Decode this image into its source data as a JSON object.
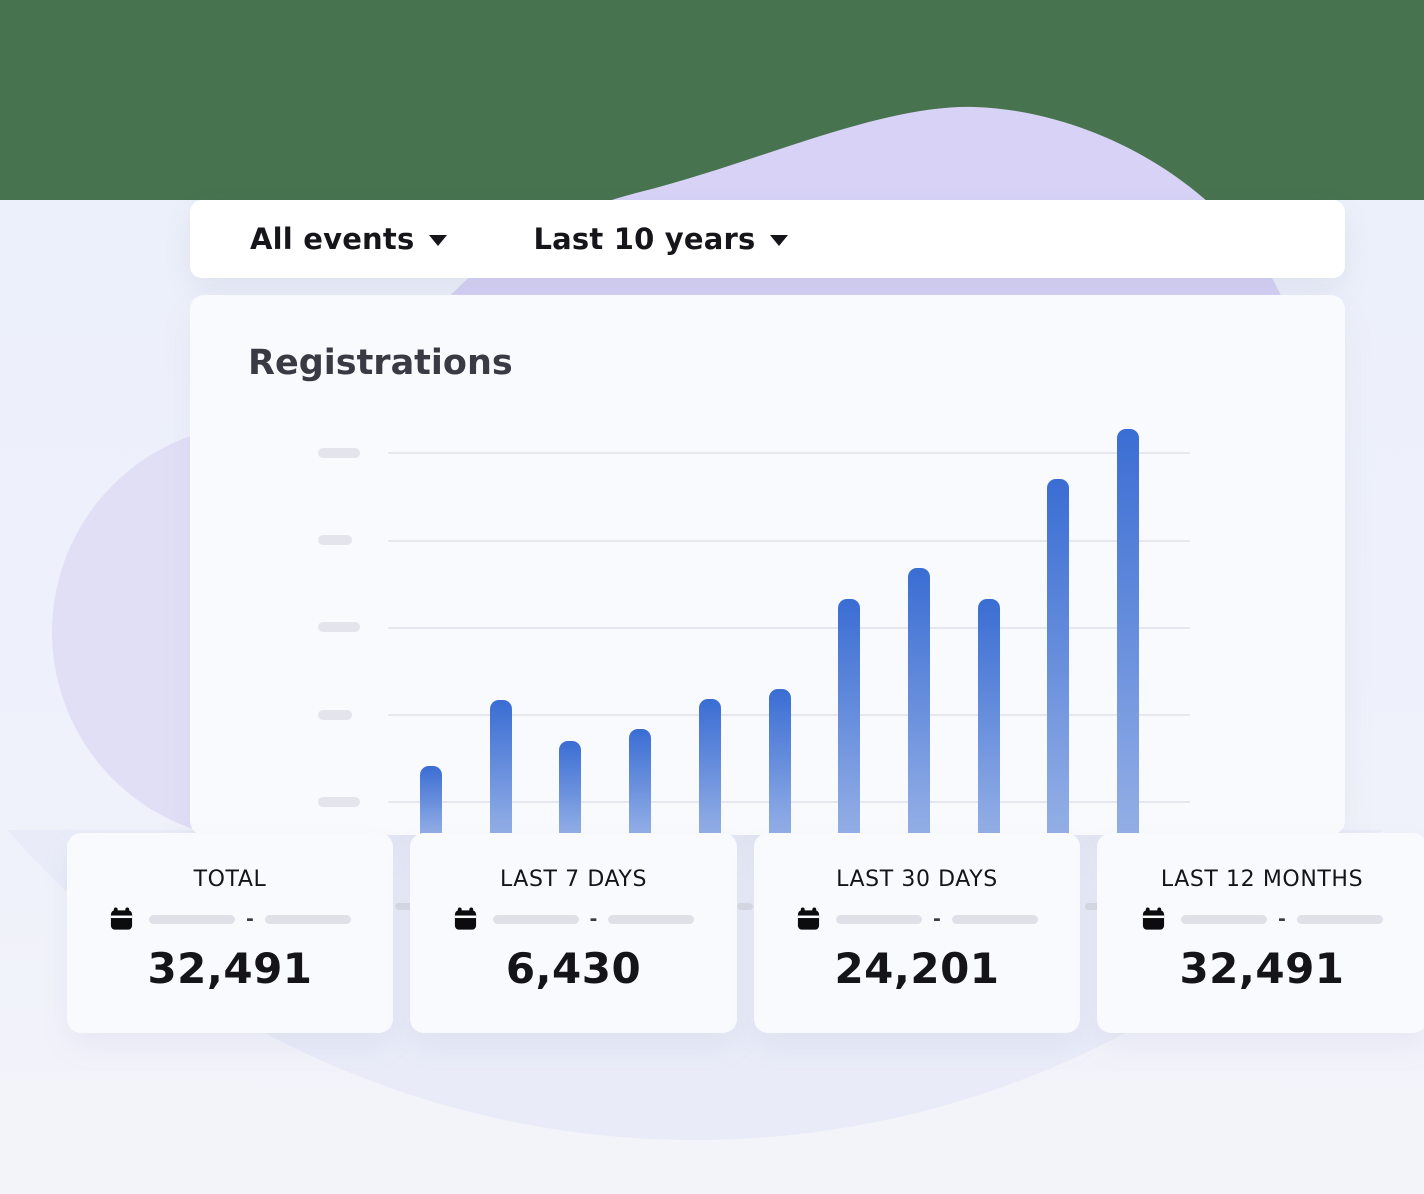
{
  "filters": {
    "events_label": "All events",
    "period_label": "Last 10 years"
  },
  "chart": {
    "title": "Registrations"
  },
  "chart_data": {
    "type": "bar",
    "title": "Registrations",
    "categories": [
      "",
      "",
      "",
      "",
      "",
      "",
      "",
      "",
      "",
      "",
      ""
    ],
    "values": [
      0.73,
      1.49,
      1.02,
      1.15,
      1.5,
      1.61,
      2.64,
      2.99,
      2.64,
      4.01,
      4.58
    ],
    "xlabel": "",
    "ylabel": "",
    "ylim": [
      0,
      4.7
    ],
    "gridlines": 5,
    "grid": true,
    "legend": false,
    "axis_tick_labels": "blank placeholder pills (no numeric labels shown)",
    "bar_color_top": "#3a6dd3",
    "bar_color_bottom": "#94afe6"
  },
  "stats": {
    "date_separator": "-",
    "cards": [
      {
        "label": "TOTAL",
        "value": "32,491"
      },
      {
        "label": "LAST 7 DAYS",
        "value": "6,430"
      },
      {
        "label": "LAST 30 DAYS",
        "value": "24,201"
      },
      {
        "label": "LAST 12 MONTHS",
        "value": "32,491"
      }
    ]
  },
  "icons": {
    "dropdown_caret": "caret-down-icon",
    "calendar": "calendar-icon"
  },
  "colors": {
    "backdrop_green": "#48734f",
    "page_bg": "#edf1fb",
    "blob_lavender": "#d7d2f6",
    "card_bg": "#f8fafd",
    "accent_bar_top": "#3a6dd3",
    "accent_bar_bottom": "#94afe6"
  }
}
